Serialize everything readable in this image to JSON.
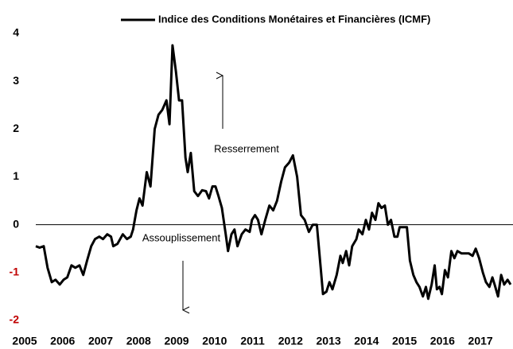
{
  "chart_data": {
    "type": "line",
    "legend_position": "top",
    "negative_tick_color": "#c00000",
    "series": [
      {
        "name": "Indice des Conditions Monétaires et Financières (ICMF)",
        "color": "#000000",
        "x": [
          2005.0,
          2005.1,
          2005.21,
          2005.31,
          2005.42,
          2005.52,
          2005.63,
          2005.73,
          2005.83,
          2005.94,
          2006.04,
          2006.15,
          2006.25,
          2006.35,
          2006.46,
          2006.56,
          2006.67,
          2006.77,
          2006.88,
          2006.98,
          2007.04,
          2007.15,
          2007.29,
          2007.4,
          2007.5,
          2007.56,
          2007.65,
          2007.73,
          2007.81,
          2007.92,
          2008.02,
          2008.13,
          2008.23,
          2008.33,
          2008.44,
          2008.52,
          2008.6,
          2008.69,
          2008.77,
          2008.85,
          2008.94,
          2009.0,
          2009.08,
          2009.17,
          2009.27,
          2009.38,
          2009.48,
          2009.56,
          2009.65,
          2009.73,
          2009.81,
          2009.9,
          2010.0,
          2010.06,
          2010.15,
          2010.23,
          2010.31,
          2010.42,
          2010.52,
          2010.63,
          2010.69,
          2010.77,
          2010.85,
          2010.94,
          2011.04,
          2011.15,
          2011.25,
          2011.35,
          2011.46,
          2011.56,
          2011.67,
          2011.77,
          2011.88,
          2011.98,
          2012.08,
          2012.19,
          2012.29,
          2012.4,
          2012.5,
          2012.56,
          2012.65,
          2012.73,
          2012.81,
          2012.92,
          2013.02,
          2013.08,
          2013.17,
          2013.25,
          2013.33,
          2013.44,
          2013.5,
          2013.6,
          2013.69,
          2013.77,
          2013.85,
          2013.94,
          2014.02,
          2014.1,
          2014.19,
          2014.27,
          2014.35,
          2014.44,
          2014.52,
          2014.58,
          2014.69,
          2014.77,
          2014.85,
          2014.94,
          2015.02,
          2015.1,
          2015.19,
          2015.27,
          2015.33,
          2015.42,
          2015.5,
          2015.56,
          2015.63,
          2015.69,
          2015.77,
          2015.85,
          2015.94,
          2016.02,
          2016.1,
          2016.21,
          2016.31,
          2016.4,
          2016.5,
          2016.58,
          2016.67,
          2016.77,
          2016.85,
          2016.94,
          2017.02,
          2017.08,
          2017.17,
          2017.25,
          2017.33,
          2017.42,
          2017.5
        ],
        "values": [
          -0.45,
          -0.48,
          -0.45,
          -0.9,
          -1.2,
          -1.15,
          -1.25,
          -1.15,
          -1.1,
          -0.85,
          -0.9,
          -0.85,
          -1.05,
          -0.75,
          -0.45,
          -0.3,
          -0.25,
          -0.3,
          -0.2,
          -0.25,
          -0.45,
          -0.4,
          -0.2,
          -0.3,
          -0.25,
          -0.1,
          0.3,
          0.55,
          0.4,
          1.1,
          0.8,
          2.0,
          2.3,
          2.4,
          2.6,
          2.1,
          3.75,
          3.2,
          2.6,
          2.6,
          1.4,
          1.1,
          1.5,
          0.7,
          0.6,
          0.72,
          0.7,
          0.55,
          0.8,
          0.8,
          0.6,
          0.35,
          -0.2,
          -0.55,
          -0.2,
          -0.1,
          -0.45,
          -0.2,
          -0.1,
          -0.15,
          0.1,
          0.2,
          0.1,
          -0.2,
          0.1,
          0.4,
          0.3,
          0.5,
          0.9,
          1.2,
          1.3,
          1.45,
          1.0,
          0.2,
          0.1,
          -0.15,
          0.0,
          0.0,
          -0.9,
          -1.45,
          -1.4,
          -1.2,
          -1.35,
          -1.05,
          -0.65,
          -0.8,
          -0.55,
          -0.85,
          -0.45,
          -0.3,
          -0.1,
          -0.2,
          0.1,
          -0.1,
          0.25,
          0.1,
          0.45,
          0.35,
          0.4,
          0.0,
          0.1,
          -0.25,
          -0.25,
          -0.05,
          -0.05,
          -0.05,
          -0.75,
          -1.05,
          -1.2,
          -1.3,
          -1.5,
          -1.3,
          -1.55,
          -1.25,
          -0.85,
          -1.35,
          -1.3,
          -1.45,
          -0.95,
          -1.1,
          -0.55,
          -0.7,
          -0.55,
          -0.6,
          -0.6,
          -0.6,
          -0.65,
          -0.5,
          -0.7,
          -1.0,
          -1.2,
          -1.3,
          -1.1,
          -1.25,
          -1.5,
          -1.05,
          -1.25,
          -1.15,
          -1.25
        ]
      }
    ],
    "xlim": [
      2005.0,
      2017.5
    ],
    "xticks": [
      2005,
      2006,
      2007,
      2008,
      2009,
      2010,
      2011,
      2012,
      2013,
      2014,
      2015,
      2016,
      2017
    ],
    "ylim": [
      -2,
      4
    ],
    "yticks": [
      -2,
      -1,
      0,
      1,
      2,
      3,
      4
    ],
    "annotations": [
      "Resserrement",
      "Assouplissement"
    ]
  }
}
